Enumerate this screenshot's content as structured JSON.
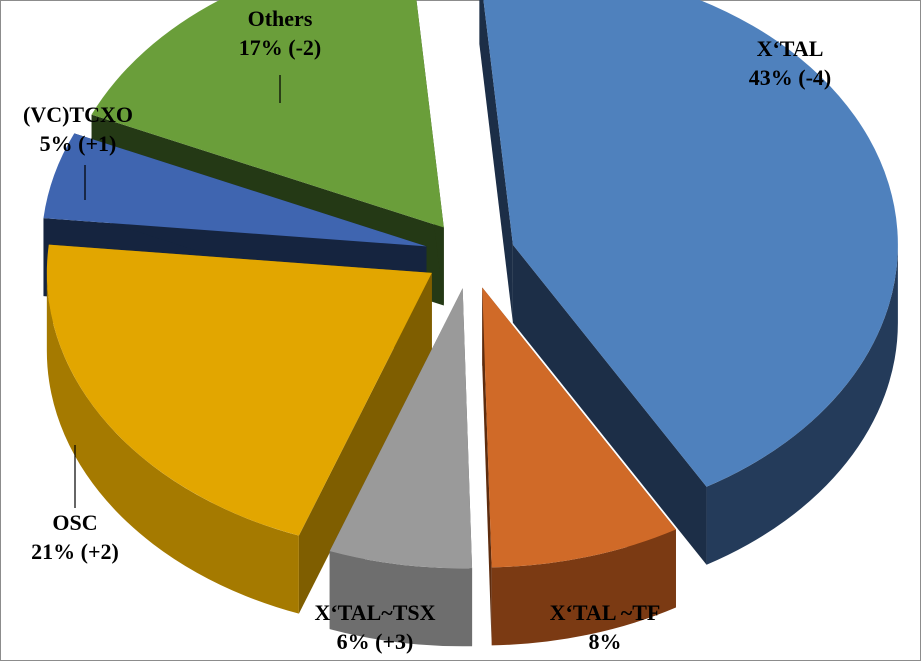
{
  "chart_data": {
    "type": "pie",
    "style": "3d-exploded",
    "title": "",
    "legend": "none",
    "slices": [
      {
        "name": "X‘TAL",
        "value": 43,
        "line1": "X‘TAL",
        "line2": "43% (-4)",
        "color": "#4f81bd",
        "side": "#243b5a",
        "bottom": "#1c2e47"
      },
      {
        "name": "X‘TAL ~TF",
        "value": 8,
        "line1": "X‘TAL ~TF",
        "line2": "8%",
        "color": "#d06a28",
        "side": "#7b3a13",
        "bottom": "#5e2c0e"
      },
      {
        "name": "X‘TAL~TSX",
        "value": 6,
        "line1": "X‘TAL~TSX",
        "line2": "6% (+3)",
        "color": "#9a9a9a",
        "side": "#6e6e6e",
        "bottom": "#555555"
      },
      {
        "name": "OSC",
        "value": 21,
        "line1": "OSC",
        "line2": "21% (+2)",
        "color": "#e2a600",
        "side": "#a57a00",
        "bottom": "#7f5e00"
      },
      {
        "name": "(VC)TCXO",
        "value": 5,
        "line1": "(VC)TCXO",
        "line2": "5% (+1)",
        "color": "#3f65b0",
        "side": "#1c2f55",
        "bottom": "#15243f"
      },
      {
        "name": "Others",
        "value": 17,
        "line1": "Others",
        "line2": "17% (-2)",
        "color": "#6a9e3a",
        "side": "#2f4a1c",
        "bottom": "#243915"
      }
    ]
  }
}
